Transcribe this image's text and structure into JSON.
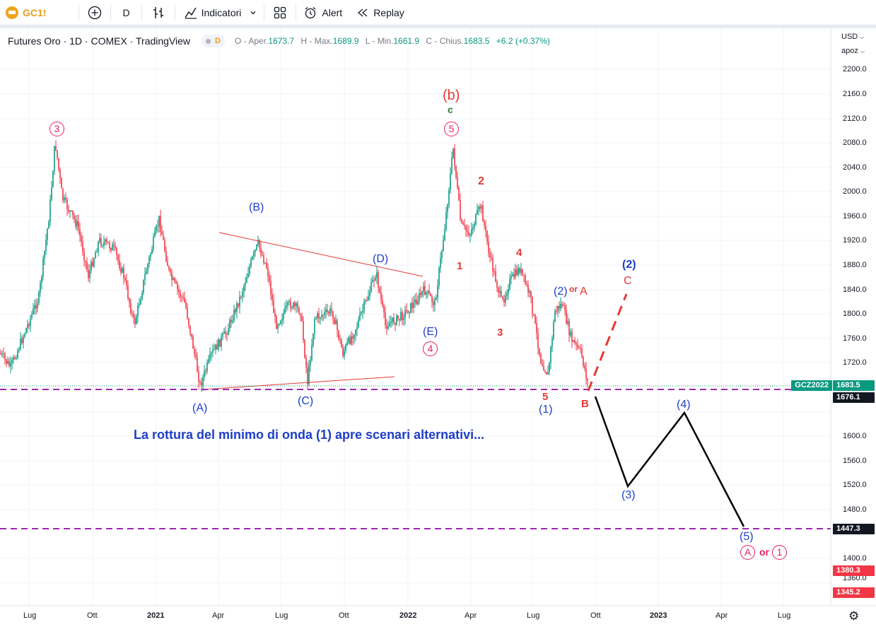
{
  "toolbar": {
    "symbol": "GC1!",
    "interval": "D",
    "indicators_label": "Indicatori",
    "alert_label": "Alert",
    "replay_label": "Replay"
  },
  "legend": {
    "title": "Futures Oro · 1D · COMEX · TradingView",
    "badge": "D",
    "o_label": "O - Aper.",
    "o_value": "1673.7",
    "h_label": "H - Max.",
    "h_value": "1689.9",
    "l_label": "L - Min.",
    "l_value": "1661.9",
    "c_label": "C - Chius.",
    "c_value": "1683.5",
    "change": "+6.2 (+0.37%)"
  },
  "price_axis": {
    "currency": "USD",
    "scale_mode": "apoz",
    "ticks": [
      "2200.0",
      "2160.0",
      "2120.0",
      "2080.0",
      "2040.0",
      "2000.0",
      "1960.0",
      "1920.0",
      "1880.0",
      "1840.0",
      "1800.0",
      "1760.0",
      "1720.0",
      "1600.0",
      "1560.0",
      "1520.0",
      "1480.0",
      "1400.0",
      "1360.0"
    ],
    "tags": {
      "symbol_tag": "GCZ2022",
      "last_price": "1683.5",
      "level_1": "1676.1",
      "level_2": "1447.3",
      "level_3": "1380.3",
      "level_4": "1345.2"
    }
  },
  "time_axis": [
    "Lug",
    "Ott",
    "2021",
    "Apr",
    "Lug",
    "Ott",
    "2022",
    "Apr",
    "Lug",
    "Ott",
    "2023",
    "Apr",
    "Lug"
  ],
  "annotations": {
    "headline": "La rottura del minimo di onda (1) apre scenari alternativi...",
    "labels": [
      {
        "text": "3",
        "color": "#e91e63",
        "circled": true
      },
      {
        "text": "(B)",
        "color": "#1e3ec8"
      },
      {
        "text": "(D)",
        "color": "#1e3ec8"
      },
      {
        "text": "(b)",
        "color": "#e53935"
      },
      {
        "text": "c",
        "color": "#2e7d32"
      },
      {
        "text": "5",
        "color": "#e91e63",
        "circled": true
      },
      {
        "text": "2",
        "color": "#e53935"
      },
      {
        "text": "1",
        "color": "#e53935"
      },
      {
        "text": "4",
        "color": "#e53935"
      },
      {
        "text": "3",
        "color": "#e53935"
      },
      {
        "text": "(E)",
        "color": "#1e3ec8"
      },
      {
        "text": "4",
        "color": "#e91e63",
        "circled": true
      },
      {
        "text": "(A)",
        "color": "#1e3ec8"
      },
      {
        "text": "(C)",
        "color": "#1e3ec8"
      },
      {
        "text": "5",
        "color": "#e53935"
      },
      {
        "text": "(1)",
        "color": "#1e3ec8"
      },
      {
        "text": "(2)",
        "color": "#1e3ec8"
      },
      {
        "text": "or",
        "color": "#e53935"
      },
      {
        "text": "A",
        "color": "#e53935"
      },
      {
        "text": "B",
        "color": "#e53935"
      },
      {
        "text": "(2)",
        "color": "#1e3ec8"
      },
      {
        "text": "C",
        "color": "#e53935"
      },
      {
        "text": "(4)",
        "color": "#1e3ec8"
      },
      {
        "text": "(3)",
        "color": "#1e3ec8"
      },
      {
        "text": "(5)",
        "color": "#1e3ec8"
      },
      {
        "text": "A",
        "color": "#e91e63",
        "circled": true
      },
      {
        "text": "or",
        "color": "#e91e63"
      },
      {
        "text": "1",
        "color": "#e91e63",
        "circled": true
      }
    ]
  },
  "colors": {
    "up": "#089981",
    "down": "#f23645",
    "dashed_level": "#9c27b0",
    "trendline": "#e53935",
    "projection": "#000000"
  },
  "icons": [
    "gold-coin-icon",
    "plus-circle-icon",
    "bar-style-icon",
    "indicators-icon",
    "chevron-down-icon",
    "layout-icon",
    "alarm-icon",
    "replay-icon",
    "settings-gear-icon"
  ]
}
